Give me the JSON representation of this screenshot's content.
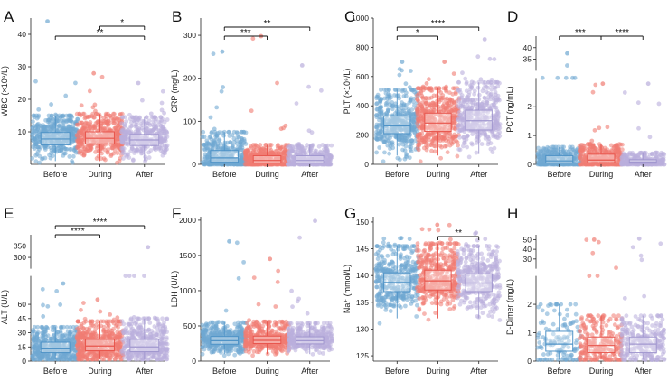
{
  "colors": {
    "before": "#6fa8d2",
    "during": "#f07c72",
    "after": "#b9aedc",
    "before_box": "#4f93c7",
    "during_box": "#e8564d",
    "after_box": "#a197cf"
  },
  "chart_data": [
    {
      "type": "box-jitter",
      "panel": "A",
      "ylabel": "WBC (×10⁹/L)",
      "categories": [
        "Before",
        "During",
        "After"
      ],
      "ylim": [
        0,
        45
      ],
      "yticks": [
        10,
        20,
        30,
        40
      ],
      "series": [
        {
          "name": "Before",
          "q1": 6,
          "median": 7.8,
          "q3": 9.8,
          "whisker_low": 1,
          "whisker_high": 15,
          "min": 0.5,
          "max": 44,
          "n": 400
        },
        {
          "name": "During",
          "q1": 6.3,
          "median": 8,
          "q3": 10,
          "whisker_low": 1,
          "whisker_high": 15.5,
          "min": 0.5,
          "max": 28,
          "n": 420
        },
        {
          "name": "After",
          "q1": 5.8,
          "median": 7.5,
          "q3": 9.2,
          "whisker_low": 1,
          "whisker_high": 14.5,
          "min": 0.5,
          "max": 25,
          "n": 360
        }
      ],
      "significance": [
        {
          "from": 1,
          "to": 2,
          "label": "*"
        },
        {
          "from": 0,
          "to": 2,
          "label": "**"
        }
      ]
    },
    {
      "type": "box-jitter",
      "panel": "B",
      "ylabel": "CRP (mg/L)",
      "categories": [
        "Before",
        "During",
        "After"
      ],
      "ylim": [
        0,
        340
      ],
      "yticks": [
        0,
        100,
        200,
        300
      ],
      "series": [
        {
          "name": "Before",
          "q1": 5,
          "median": 15,
          "q3": 32,
          "whisker_low": 0,
          "whisker_high": 75,
          "min": 0,
          "max": 262,
          "n": 350
        },
        {
          "name": "During",
          "q1": 3,
          "median": 9,
          "q3": 20,
          "whisker_low": 0,
          "whisker_high": 45,
          "min": 0,
          "max": 298,
          "n": 380
        },
        {
          "name": "After",
          "q1": 3,
          "median": 9,
          "q3": 20,
          "whisker_low": 0,
          "whisker_high": 45,
          "min": 0,
          "max": 230,
          "n": 330
        }
      ],
      "significance": [
        {
          "from": 0,
          "to": 1,
          "label": "***"
        },
        {
          "from": 0,
          "to": 2,
          "label": "**"
        }
      ]
    },
    {
      "type": "box-jitter",
      "panel": "C",
      "ylabel": "PLT (×10⁹/L)",
      "categories": [
        "Before",
        "During",
        "After"
      ],
      "ylim": [
        0,
        1000
      ],
      "yticks": [
        0,
        200,
        400,
        600,
        800,
        1000
      ],
      "series": [
        {
          "name": "Before",
          "q1": 210,
          "median": 262,
          "q3": 330,
          "whisker_low": 60,
          "whisker_high": 510,
          "min": 20,
          "max": 700,
          "n": 420
        },
        {
          "name": "During",
          "q1": 225,
          "median": 282,
          "q3": 350,
          "whisker_low": 60,
          "whisker_high": 520,
          "min": 20,
          "max": 700,
          "n": 440
        },
        {
          "name": "After",
          "q1": 235,
          "median": 298,
          "q3": 370,
          "whisker_low": 70,
          "whisker_high": 560,
          "min": 50,
          "max": 855,
          "n": 400
        }
      ],
      "significance": [
        {
          "from": 0,
          "to": 1,
          "label": "*"
        },
        {
          "from": 0,
          "to": 2,
          "label": "****"
        }
      ]
    },
    {
      "type": "box-jitter",
      "panel": "D",
      "ylabel": "PCT (ng/mL)",
      "broken_axis": true,
      "categories": [
        "Before",
        "During",
        "After"
      ],
      "lower_ylim": [
        0,
        3
      ],
      "lower_yticks": [
        0,
        1,
        2
      ],
      "upper_ylim": [
        30,
        45
      ],
      "upper_yticks": [
        35,
        40
      ],
      "series": [
        {
          "name": "Before",
          "q1": 0.05,
          "median": 0.12,
          "q3": 0.3,
          "whisker_low": 0,
          "whisker_high": 0.6,
          "min": 0,
          "max": 37.5,
          "n": 300
        },
        {
          "name": "During",
          "q1": 0.06,
          "median": 0.15,
          "q3": 0.35,
          "whisker_low": 0,
          "whisker_high": 0.7,
          "min": 0,
          "max": 2.8,
          "n": 340
        },
        {
          "name": "After",
          "q1": 0.04,
          "median": 0.08,
          "q3": 0.16,
          "whisker_low": 0,
          "whisker_high": 0.4,
          "min": 0,
          "max": 2.8,
          "n": 300
        }
      ],
      "significance": [
        {
          "from": 0,
          "to": 1,
          "label": "***"
        },
        {
          "from": 1,
          "to": 2,
          "label": "****"
        }
      ]
    },
    {
      "type": "box-jitter",
      "panel": "E",
      "ylabel": "ALT (U/L)",
      "broken_axis": true,
      "categories": [
        "Before",
        "During",
        "After"
      ],
      "lower_ylim": [
        0,
        90
      ],
      "lower_yticks": [
        0,
        15,
        30,
        45,
        60
      ],
      "upper_ylim": [
        250,
        400
      ],
      "upper_yticks": [
        300,
        350
      ],
      "series": [
        {
          "name": "Before",
          "q1": 9,
          "median": 13,
          "q3": 20,
          "whisker_low": 2,
          "whisker_high": 36,
          "min": 2,
          "max": 82,
          "n": 420
        },
        {
          "name": "During",
          "q1": 11,
          "median": 16,
          "q3": 23,
          "whisker_low": 2,
          "whisker_high": 42,
          "min": 2,
          "max": 65,
          "n": 460
        },
        {
          "name": "After",
          "q1": 10,
          "median": 15,
          "q3": 23,
          "whisker_low": 2,
          "whisker_high": 45,
          "min": 2,
          "max": 345,
          "n": 400
        }
      ],
      "significance": [
        {
          "from": 0,
          "to": 1,
          "label": "****"
        },
        {
          "from": 0,
          "to": 2,
          "label": "****"
        }
      ]
    },
    {
      "type": "box-jitter",
      "panel": "F",
      "ylabel": "LDH (U/L)",
      "categories": [
        "Before",
        "During",
        "After"
      ],
      "ylim": [
        0,
        2050
      ],
      "yticks": [
        0,
        500,
        1000,
        1500,
        2000
      ],
      "series": [
        {
          "name": "Before",
          "q1": 240,
          "median": 290,
          "q3": 350,
          "whisker_low": 100,
          "whisker_high": 550,
          "min": 80,
          "max": 1700,
          "n": 380
        },
        {
          "name": "During",
          "q1": 250,
          "median": 295,
          "q3": 355,
          "whisker_low": 100,
          "whisker_high": 560,
          "min": 70,
          "max": 1450,
          "n": 400
        },
        {
          "name": "After",
          "q1": 245,
          "median": 290,
          "q3": 345,
          "whisker_low": 100,
          "whisker_high": 540,
          "min": 80,
          "max": 1990,
          "n": 360
        }
      ],
      "significance": []
    },
    {
      "type": "box-jitter",
      "panel": "G",
      "ylabel": "Na⁺ (mmol/L)",
      "categories": [
        "Before",
        "During",
        "After"
      ],
      "ylim": [
        124,
        151
      ],
      "yticks": [
        125,
        130,
        135,
        140,
        145,
        150
      ],
      "series": [
        {
          "name": "Before",
          "q1": 137,
          "median": 138.7,
          "q3": 140.5,
          "whisker_low": 132,
          "whisker_high": 145.5,
          "min": 130,
          "max": 147,
          "n": 360
        },
        {
          "name": "During",
          "q1": 137.3,
          "median": 139,
          "q3": 141,
          "whisker_low": 132,
          "whisker_high": 146,
          "min": 126,
          "max": 149.5,
          "n": 400
        },
        {
          "name": "After",
          "q1": 137,
          "median": 138.6,
          "q3": 140.3,
          "whisker_low": 132,
          "whisker_high": 145.5,
          "min": 124,
          "max": 148,
          "n": 360
        }
      ],
      "significance": [
        {
          "from": 1,
          "to": 2,
          "label": "**"
        }
      ]
    },
    {
      "type": "box-jitter",
      "panel": "H",
      "ylabel": "D-Dimer (mg/L)",
      "broken_axis": true,
      "categories": [
        "Before",
        "During",
        "After"
      ],
      "lower_ylim": [
        0,
        3
      ],
      "lower_yticks": [
        0,
        1,
        2
      ],
      "upper_ylim": [
        20,
        55
      ],
      "upper_yticks": [
        30,
        40,
        50
      ],
      "series": [
        {
          "name": "Before",
          "q1": 0.35,
          "median": 0.6,
          "q3": 1.05,
          "whisker_low": 0.05,
          "whisker_high": 2,
          "min": 0.05,
          "max": 2,
          "n": 120
        },
        {
          "name": "During",
          "q1": 0.3,
          "median": 0.55,
          "q3": 0.85,
          "whisker_low": 0.05,
          "whisker_high": 1.6,
          "min": 0.05,
          "max": 50,
          "n": 240
        },
        {
          "name": "After",
          "q1": 0.3,
          "median": 0.6,
          "q3": 0.85,
          "whisker_low": 0.05,
          "whisker_high": 1.6,
          "min": 0.05,
          "max": 51,
          "n": 260
        }
      ],
      "significance": []
    }
  ]
}
